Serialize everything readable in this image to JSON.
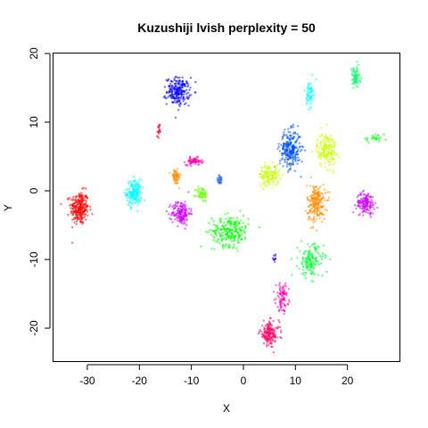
{
  "chart_data": {
    "type": "scatter",
    "title": "Kuzushiji lvish perplexity = 50",
    "xlabel": "X",
    "ylabel": "Y",
    "xlim": [
      -36.5,
      30
    ],
    "ylim": [
      -24.8,
      20
    ],
    "xticks": [
      -30,
      -20,
      -10,
      0,
      10,
      20
    ],
    "yticks": [
      -20,
      -10,
      0,
      10,
      20
    ],
    "grid": false,
    "legend": "none",
    "clusters": [
      {
        "color": "#FF0000",
        "cx": -31.5,
        "cy": -2.5,
        "sx": 1.6,
        "sy": 2.2,
        "n": 260
      },
      {
        "color": "#00FFFF",
        "cx": -21.0,
        "cy": -0.3,
        "sx": 1.3,
        "sy": 1.7,
        "n": 180
      },
      {
        "color": "#0000FF",
        "cx": -12.5,
        "cy": 14.5,
        "sx": 2.0,
        "sy": 1.8,
        "n": 220
      },
      {
        "color": "#FF0033",
        "cx": -16.3,
        "cy": 8.5,
        "sx": 0.25,
        "sy": 1.2,
        "n": 20
      },
      {
        "color": "#FF8C00",
        "cx": -13.0,
        "cy": 2.0,
        "sx": 0.9,
        "sy": 1.0,
        "n": 60
      },
      {
        "color": "#FF00AA",
        "cx": -9.5,
        "cy": 4.3,
        "sx": 1.4,
        "sy": 0.5,
        "n": 70
      },
      {
        "color": "#CC00FF",
        "cx": -12.0,
        "cy": -3.2,
        "sx": 1.6,
        "sy": 1.6,
        "n": 170
      },
      {
        "color": "#66FF00",
        "cx": -8.0,
        "cy": -0.5,
        "sx": 1.0,
        "sy": 1.0,
        "n": 60
      },
      {
        "color": "#2A66FF",
        "cx": -4.5,
        "cy": 1.6,
        "sx": 0.6,
        "sy": 0.6,
        "n": 30
      },
      {
        "color": "#00FF00",
        "cx": -2.5,
        "cy": -5.8,
        "sx": 3.2,
        "sy": 2.0,
        "n": 240
      },
      {
        "color": "#0050FF",
        "cx": 9.0,
        "cy": 6.0,
        "sx": 1.8,
        "sy": 2.5,
        "n": 260
      },
      {
        "color": "#C8FF00",
        "cx": 5.0,
        "cy": 2.3,
        "sx": 1.8,
        "sy": 1.4,
        "n": 140
      },
      {
        "color": "#C8FF00",
        "cx": 16.0,
        "cy": 6.0,
        "sx": 1.7,
        "sy": 2.3,
        "n": 180
      },
      {
        "color": "#FF8C00",
        "cx": 14.0,
        "cy": -1.8,
        "sx": 1.6,
        "sy": 2.5,
        "n": 220
      },
      {
        "color": "#CC00FF",
        "cx": 23.5,
        "cy": -1.8,
        "sx": 1.6,
        "sy": 1.4,
        "n": 150
      },
      {
        "color": "#00FFFF",
        "cx": 12.8,
        "cy": 14.2,
        "sx": 0.6,
        "sy": 1.7,
        "n": 60
      },
      {
        "color": "#00FF66",
        "cx": 21.5,
        "cy": 16.5,
        "sx": 0.9,
        "sy": 1.5,
        "n": 70
      },
      {
        "color": "#00FF33",
        "cx": 13.0,
        "cy": -10.2,
        "sx": 2.2,
        "sy": 2.2,
        "n": 160
      },
      {
        "color": "#FF00AA",
        "cx": 7.5,
        "cy": -15.5,
        "sx": 1.1,
        "sy": 1.8,
        "n": 90
      },
      {
        "color": "#FF0066",
        "cx": 5.0,
        "cy": -20.8,
        "sx": 1.7,
        "sy": 1.6,
        "n": 170
      },
      {
        "color": "#2200FF",
        "cx": 6.0,
        "cy": -9.8,
        "sx": 0.3,
        "sy": 0.6,
        "n": 12
      },
      {
        "color": "#00FF00",
        "cx": 25.0,
        "cy": 7.6,
        "sx": 2.0,
        "sy": 0.4,
        "n": 25
      }
    ]
  }
}
